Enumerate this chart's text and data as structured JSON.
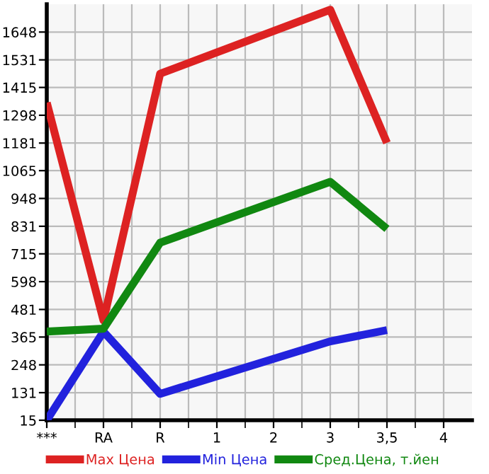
{
  "chart_data": {
    "type": "line",
    "categories": [
      "***",
      "RA",
      "R",
      "1",
      "2",
      "3",
      "3,5",
      "4"
    ],
    "series": [
      {
        "name": "Max Цена",
        "color": "#dd2222",
        "values": [
          1351,
          435,
          1473,
          null,
          null,
          1742,
          1182,
          null
        ]
      },
      {
        "name": "Min Цена",
        "color": "#2222dd",
        "values": [
          15,
          388,
          126,
          null,
          null,
          347,
          394,
          null
        ]
      },
      {
        "name": "Сред.Цена, т.йен",
        "color": "#118811",
        "values": [
          388,
          400,
          762,
          null,
          null,
          1018,
          820,
          null
        ]
      }
    ],
    "ylim": [
      15,
      1765
    ],
    "yticks": [
      15,
      131,
      248,
      365,
      481,
      598,
      715,
      831,
      948,
      1065,
      1181,
      1298,
      1415,
      1531,
      1648
    ],
    "grid": true,
    "legend": "bottom",
    "marker": "none",
    "line_style": "solid"
  }
}
